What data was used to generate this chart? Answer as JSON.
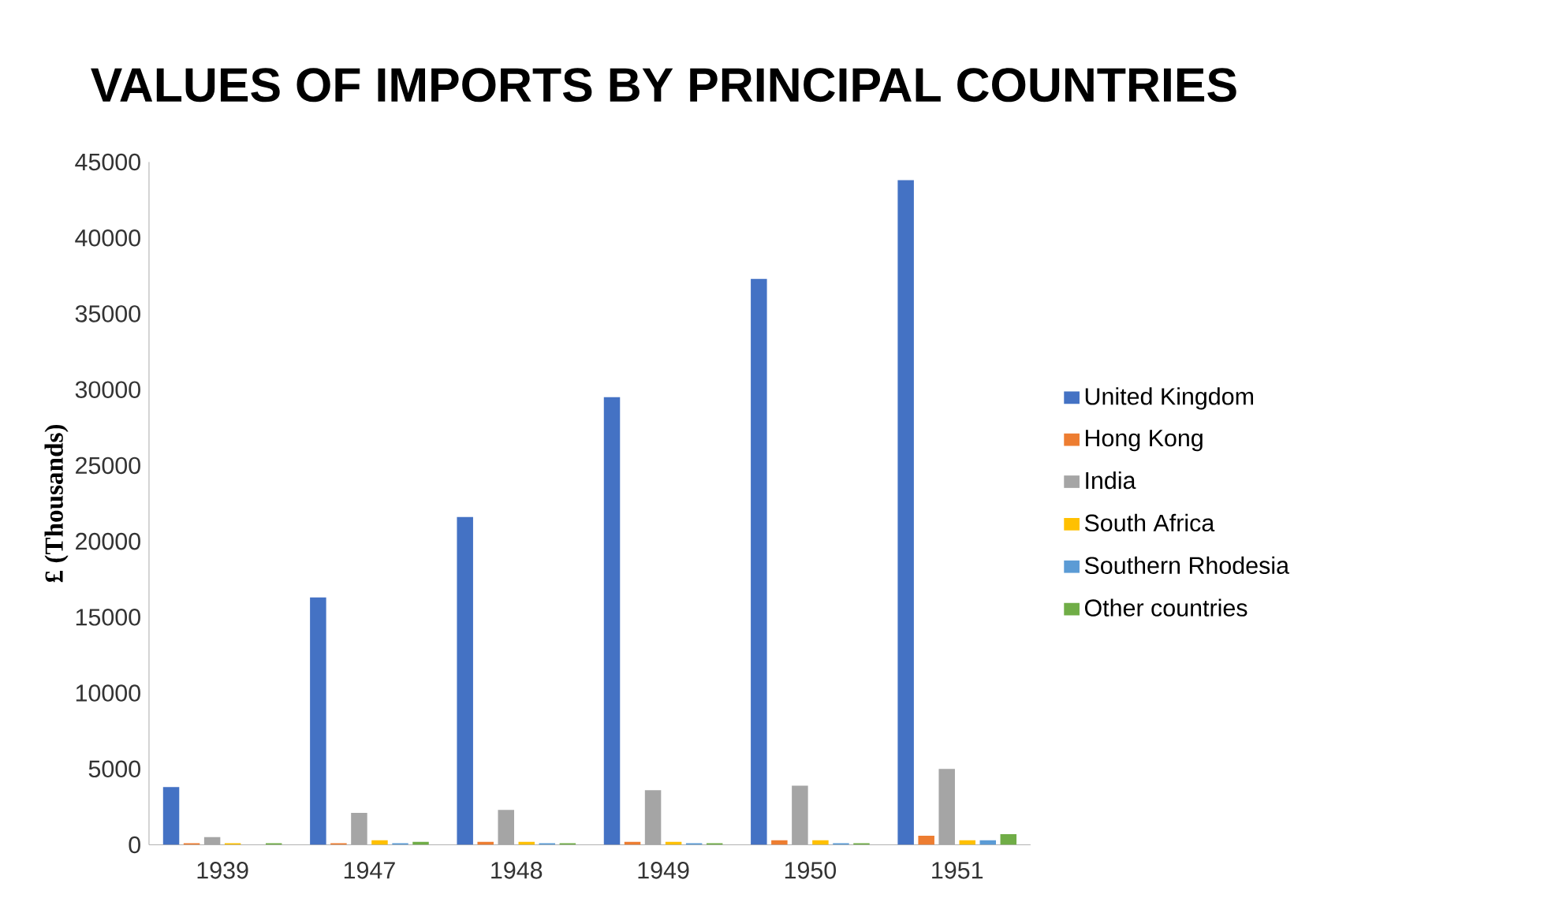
{
  "chart_data": {
    "type": "bar",
    "title": "VALUES OF IMPORTS BY PRINCIPAL COUNTRIES",
    "ylabel": "£ (Thousands)",
    "categories": [
      "1939",
      "1947",
      "1948",
      "1949",
      "1950",
      "1951"
    ],
    "series": [
      {
        "name": "United Kingdom",
        "color": "#4472c4",
        "values": [
          3800,
          16300,
          21600,
          29500,
          37300,
          43800
        ]
      },
      {
        "name": "Hong Kong",
        "color": "#ed7d31",
        "values": [
          100,
          100,
          200,
          200,
          300,
          600
        ]
      },
      {
        "name": "India",
        "color": "#a5a5a5",
        "values": [
          500,
          2100,
          2300,
          3600,
          3900,
          5000
        ]
      },
      {
        "name": "South Africa",
        "color": "#ffc000",
        "values": [
          100,
          300,
          200,
          200,
          300,
          300
        ]
      },
      {
        "name": "Southern Rhodesia",
        "color": "#5b9bd5",
        "values": [
          null,
          100,
          100,
          100,
          100,
          300
        ]
      },
      {
        "name": "Other countries",
        "color": "#70ad47",
        "values": [
          100,
          200,
          100,
          100,
          100,
          700
        ]
      }
    ],
    "ylim": [
      0,
      45000
    ],
    "yticks": [
      0,
      5000,
      10000,
      15000,
      20000,
      25000,
      30000,
      35000,
      40000,
      45000
    ],
    "grid": false,
    "legend": "right"
  }
}
